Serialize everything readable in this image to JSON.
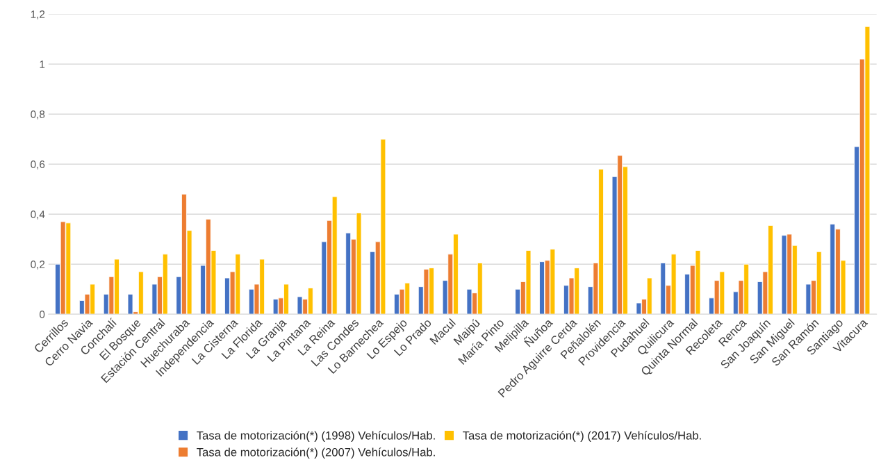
{
  "chart_data": {
    "type": "bar",
    "categories": [
      "Cerrillos",
      "Cerro Navia",
      "Conchalí",
      "El Bosque",
      "Estación Central",
      "Huechuraba",
      "Independencia",
      "La Cisterna",
      "La Florida",
      "La Granja",
      "La Pintana",
      "La Reina",
      "Las Condes",
      "Lo Barnechea",
      "Lo Espejo",
      "Lo Prado",
      "Macul",
      "Maipú",
      "María Pinto",
      "Melipilla",
      "Ñuñoa",
      "Pedro Aguirre Cerda",
      "Peñalolén",
      "Providencia",
      "Pudahuel",
      "Quilicura",
      "Quinta Normal",
      "Recoleta",
      "Renca",
      "San Joaquín",
      "San Miguel",
      "San Ramón",
      "Santiago",
      "Vitacura"
    ],
    "series": [
      {
        "name": "Tasa de motorización(*) (1998) Vehículos/Hab.",
        "color": "#4472c4",
        "values": [
          0.2,
          0.055,
          0.08,
          0.08,
          0.12,
          0.15,
          0.195,
          0.145,
          0.1,
          0.06,
          0.07,
          0.29,
          0.325,
          0.25,
          0.08,
          0.11,
          0.135,
          0.1,
          null,
          0.1,
          0.21,
          0.115,
          0.11,
          0.55,
          0.045,
          0.205,
          0.16,
          0.065,
          0.09,
          0.13,
          0.315,
          0.12,
          0.36,
          0.67
        ]
      },
      {
        "name": "Tasa de motorización(*) (2007) Vehículos/Hab.",
        "color": "#ed7d31",
        "values": [
          0.37,
          0.08,
          0.15,
          0.01,
          0.15,
          0.48,
          0.38,
          0.17,
          0.12,
          0.065,
          0.06,
          0.375,
          0.3,
          0.29,
          0.1,
          0.18,
          0.24,
          0.085,
          null,
          0.13,
          0.215,
          0.145,
          0.205,
          0.635,
          0.06,
          0.115,
          0.195,
          0.135,
          0.135,
          0.17,
          0.32,
          0.135,
          0.34,
          1.02
        ]
      },
      {
        "name": "Tasa de motorización(*) (2017) Vehículos/Hab.",
        "color": "#ffc000",
        "values": [
          0.365,
          0.12,
          0.22,
          0.17,
          0.24,
          0.335,
          0.255,
          0.24,
          0.22,
          0.12,
          0.105,
          0.47,
          0.405,
          0.7,
          0.125,
          0.185,
          0.32,
          0.205,
          null,
          0.255,
          0.26,
          0.185,
          0.58,
          0.59,
          0.145,
          0.24,
          0.255,
          0.17,
          0.2,
          0.355,
          0.275,
          0.25,
          0.215,
          1.15
        ]
      }
    ],
    "ylim": [
      0,
      1.2
    ],
    "yticks": [
      0,
      {
        "value": 0.2,
        "label": "0,2"
      },
      {
        "value": 0.4,
        "label": "0,4"
      },
      {
        "value": 0.6,
        "label": "0,6"
      },
      {
        "value": 0.8,
        "label": "0,8"
      },
      1,
      {
        "value": 1.2,
        "label": "1,2"
      }
    ],
    "grid": "y",
    "legend": "bottom"
  }
}
